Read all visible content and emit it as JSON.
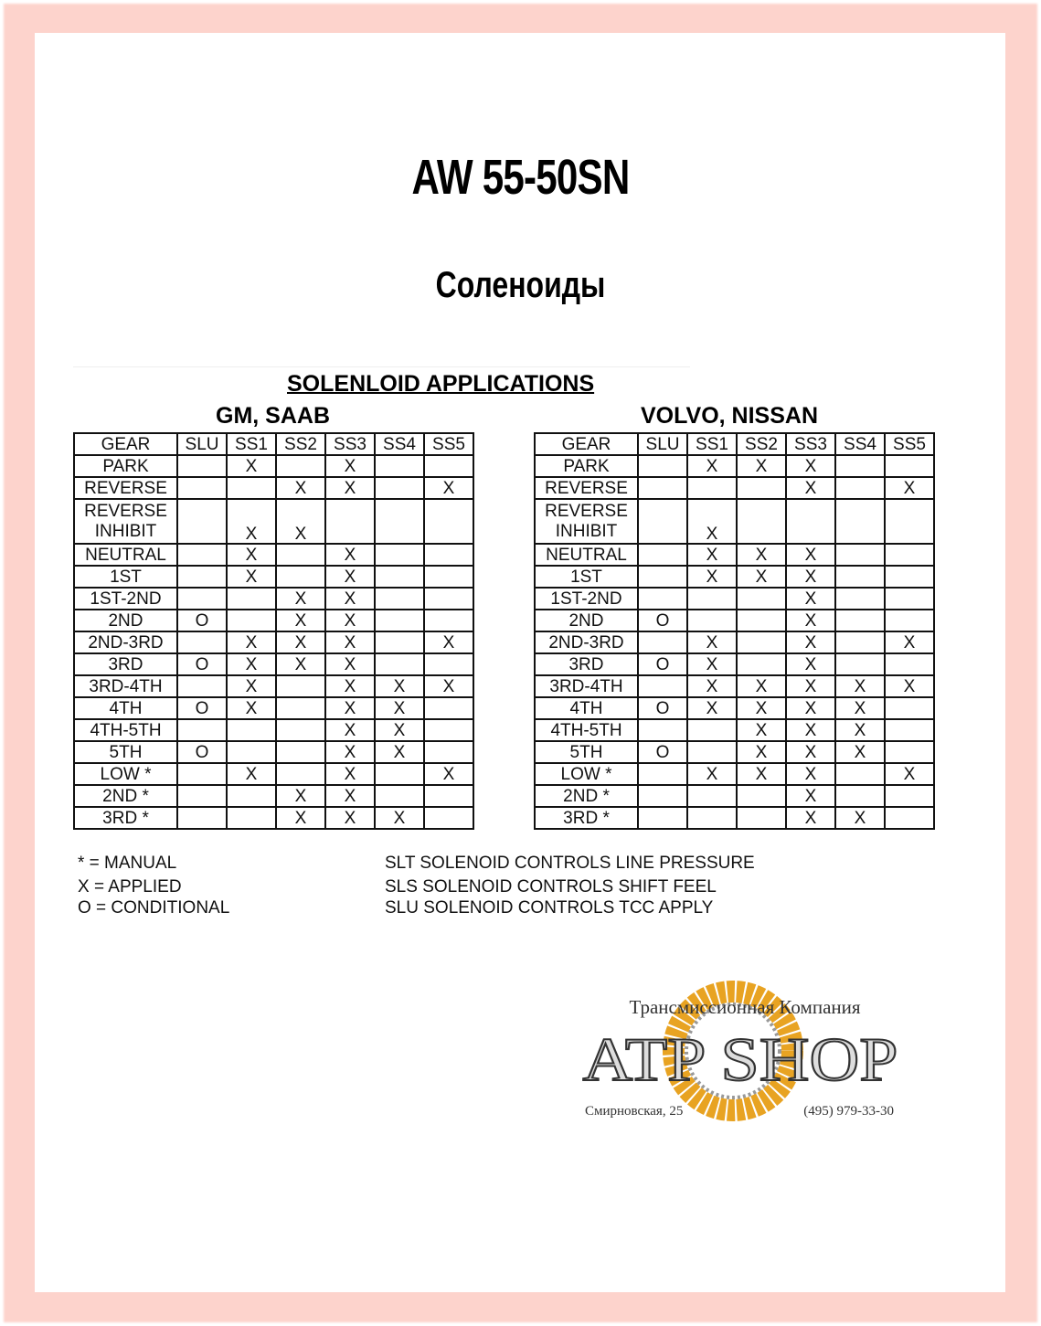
{
  "title": "AW 55-50SN",
  "subtitle": "Соленоиды",
  "section_title": "SOLENLOID APPLICATIONS",
  "columns": [
    "GEAR",
    "SLU",
    "SS1",
    "SS2",
    "SS3",
    "SS4",
    "SS5"
  ],
  "tables": [
    {
      "heading": "GM, SAAB",
      "rows": [
        [
          "PARK",
          "",
          "X",
          "",
          "X",
          "",
          ""
        ],
        [
          "REVERSE",
          "",
          "",
          "X",
          "X",
          "",
          "X"
        ],
        [
          "REVERSE INHIBIT",
          "",
          "X",
          "X",
          "",
          "",
          ""
        ],
        [
          "NEUTRAL",
          "",
          "X",
          "",
          "X",
          "",
          ""
        ],
        [
          "1ST",
          "",
          "X",
          "",
          "X",
          "",
          ""
        ],
        [
          "1ST-2ND",
          "",
          "",
          "X",
          "X",
          "",
          ""
        ],
        [
          "2ND",
          "O",
          "",
          "X",
          "X",
          "",
          ""
        ],
        [
          "2ND-3RD",
          "",
          "X",
          "X",
          "X",
          "",
          "X"
        ],
        [
          "3RD",
          "O",
          "X",
          "X",
          "X",
          "",
          ""
        ],
        [
          "3RD-4TH",
          "",
          "X",
          "",
          "X",
          "X",
          "X"
        ],
        [
          "4TH",
          "O",
          "X",
          "",
          "X",
          "X",
          ""
        ],
        [
          "4TH-5TH",
          "",
          "",
          "",
          "X",
          "X",
          ""
        ],
        [
          "5TH",
          "O",
          "",
          "",
          "X",
          "X",
          ""
        ],
        [
          "LOW *",
          "",
          "X",
          "",
          "X",
          "",
          "X"
        ],
        [
          "2ND *",
          "",
          "",
          "X",
          "X",
          "",
          ""
        ],
        [
          "3RD *",
          "",
          "",
          "X",
          "X",
          "X",
          ""
        ]
      ]
    },
    {
      "heading": "VOLVO, NISSAN",
      "rows": [
        [
          "PARK",
          "",
          "X",
          "X",
          "X",
          "",
          ""
        ],
        [
          "REVERSE",
          "",
          "",
          "",
          "X",
          "",
          "X"
        ],
        [
          "REVERSE INHIBIT",
          "",
          "X",
          "",
          "",
          "",
          ""
        ],
        [
          "NEUTRAL",
          "",
          "X",
          "X",
          "X",
          "",
          ""
        ],
        [
          "1ST",
          "",
          "X",
          "X",
          "X",
          "",
          ""
        ],
        [
          "1ST-2ND",
          "",
          "",
          "",
          "X",
          "",
          ""
        ],
        [
          "2ND",
          "O",
          "",
          "",
          "X",
          "",
          ""
        ],
        [
          "2ND-3RD",
          "",
          "X",
          "",
          "X",
          "",
          "X"
        ],
        [
          "3RD",
          "O",
          "X",
          "",
          "X",
          "",
          ""
        ],
        [
          "3RD-4TH",
          "",
          "X",
          "X",
          "X",
          "X",
          "X"
        ],
        [
          "4TH",
          "O",
          "X",
          "X",
          "X",
          "X",
          ""
        ],
        [
          "4TH-5TH",
          "",
          "",
          "X",
          "X",
          "X",
          ""
        ],
        [
          "5TH",
          "O",
          "",
          "X",
          "X",
          "X",
          ""
        ],
        [
          "LOW *",
          "",
          "X",
          "X",
          "X",
          "",
          "X"
        ],
        [
          "2ND *",
          "",
          "",
          "",
          "X",
          "",
          ""
        ],
        [
          "3RD *",
          "",
          "",
          "",
          "X",
          "X",
          ""
        ]
      ]
    }
  ],
  "legend": {
    "manual": "* = MANUAL",
    "applied": "X = APPLIED",
    "conditional": "O = CONDITIONAL",
    "slt": "SLT SOLENOID CONTROLS LINE PRESSURE",
    "sls": "SLS SOLENOID CONTROLS SHIFT FEEL",
    "slu": "SLU SOLENOID CONTROLS TCC APPLY"
  },
  "logo": {
    "tagline": "Трансмиссионная Компания",
    "name": "ATP SHOP",
    "address": "Смирновская, 25",
    "phone": "(495) 979-33-30"
  },
  "colors": {
    "frame": "#fdd3cc",
    "logo_gold": "#e8a322"
  }
}
